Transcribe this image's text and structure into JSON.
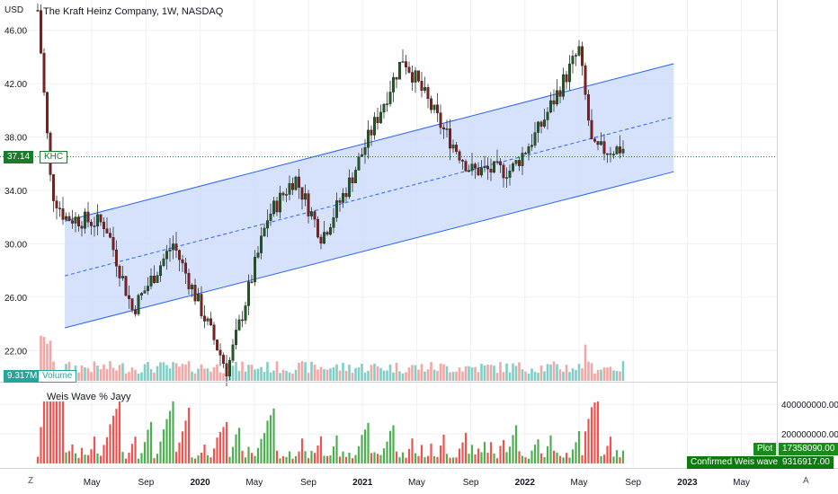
{
  "colors": {
    "up": "#26a69a",
    "candle_up": "#1b5e20",
    "candle_down": "#8b1a1a",
    "vol_up": "#7fcfc7",
    "vol_down": "#f2a7a5",
    "channel_line": "#2962ff",
    "channel_fill": "#cfdcfb",
    "wave_up": "#4caf50",
    "wave_down": "#ef5350",
    "price_badge": "#1b7a2e",
    "plot_badge": "#1b8a1b",
    "confirmed_badge": "#0d7a0d",
    "grid": "#eef0f3",
    "axis_text": "#131722"
  },
  "header": {
    "currency": "USD",
    "symbol_title": "The Kraft Heinz Company, 1W, NASDAQ"
  },
  "price_panel": {
    "current_price": "37.14",
    "ticker": "KHC",
    "volume_value": "9.317M",
    "volume_label": "Volume"
  },
  "indicator_panel": {
    "title": "Weis Wave % Jayy",
    "plot_label": "Plot",
    "plot_value": "17358090.00",
    "confirmed_label": "Confirmed Weis wave up",
    "confirmed_value": "9316917.00"
  },
  "bottom_bar": {
    "left_icon": "Z",
    "right_icon": "A"
  },
  "chart_data": [
    {
      "type": "candlestick",
      "title": "The Kraft Heinz Company, 1W, NASDAQ",
      "ylabel": "USD",
      "y_ticks": [
        "46.00",
        "42.00",
        "38.00",
        "34.00",
        "30.00",
        "26.00",
        "22.00"
      ],
      "x_ticks": [
        "May",
        "Sep",
        "2020",
        "May",
        "Sep",
        "2021",
        "May",
        "Sep",
        "2022",
        "May",
        "Sep",
        "2023",
        "May"
      ],
      "ylim": [
        20,
        48
      ],
      "grid": true,
      "ohlc_approx_key_points": [
        {
          "date": "2019-01",
          "price": 47.5
        },
        {
          "date": "2019-02",
          "price": 34.0
        },
        {
          "date": "2019-03",
          "price": 32.0
        },
        {
          "date": "2019-06",
          "price": 31.5
        },
        {
          "date": "2019-08",
          "price": 25.0
        },
        {
          "date": "2019-11",
          "price": 30.0
        },
        {
          "date": "2020-03",
          "price": 20.5
        },
        {
          "date": "2020-06",
          "price": 32.0
        },
        {
          "date": "2020-08",
          "price": 35.0
        },
        {
          "date": "2020-10",
          "price": 30.5
        },
        {
          "date": "2020-12",
          "price": 34.5
        },
        {
          "date": "2021-04",
          "price": 44.0
        },
        {
          "date": "2021-07",
          "price": 38.5
        },
        {
          "date": "2021-09",
          "price": 35.5
        },
        {
          "date": "2021-12",
          "price": 35.5
        },
        {
          "date": "2022-02",
          "price": 38.5
        },
        {
          "date": "2022-05",
          "price": 44.5
        },
        {
          "date": "2022-06",
          "price": 37.0
        },
        {
          "date": "2022-08",
          "price": 37.14
        }
      ],
      "regression_channel": {
        "upper": {
          "start": 31.7,
          "end": 43.5
        },
        "middle": {
          "start": 27.6,
          "end": 39.5
        },
        "lower": {
          "start": 23.7,
          "end": 35.4
        },
        "start_date": "2019-03",
        "end_date": "2022-12"
      }
    },
    {
      "type": "bar",
      "title": "Volume",
      "latest": "9.317M"
    },
    {
      "type": "bar",
      "title": "Weis Wave % Jayy",
      "y_ticks": [
        "400000000.00",
        "200000000.00"
      ],
      "values": {
        "Plot": 17358090.0,
        "Confirmed Weis wave up": 9316917.0
      }
    }
  ]
}
